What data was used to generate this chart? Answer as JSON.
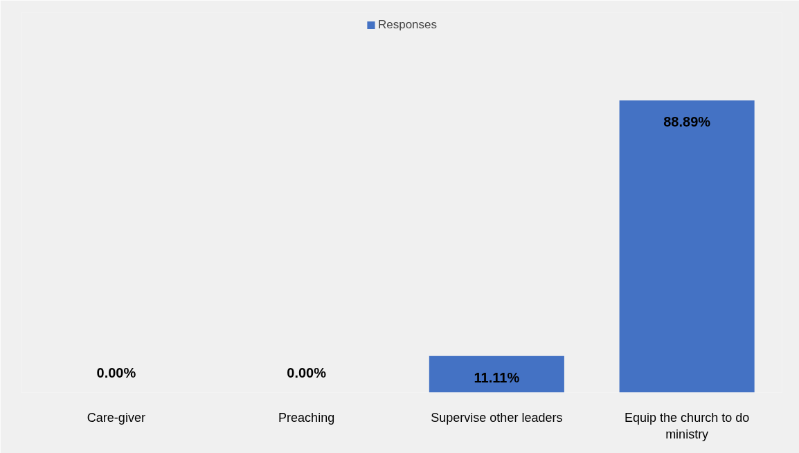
{
  "chart_data": {
    "type": "bar",
    "categories": [
      "Care-giver",
      "Preaching",
      "Supervise other leaders",
      "Equip the church to do ministry"
    ],
    "series": [
      {
        "name": "Responses",
        "color": "#4472c4",
        "values": [
          0,
          0,
          11.11,
          88.89
        ],
        "value_labels": [
          "0.00%",
          "0.00%",
          "11.11%",
          "88.89%"
        ]
      }
    ],
    "legend": "top"
  }
}
